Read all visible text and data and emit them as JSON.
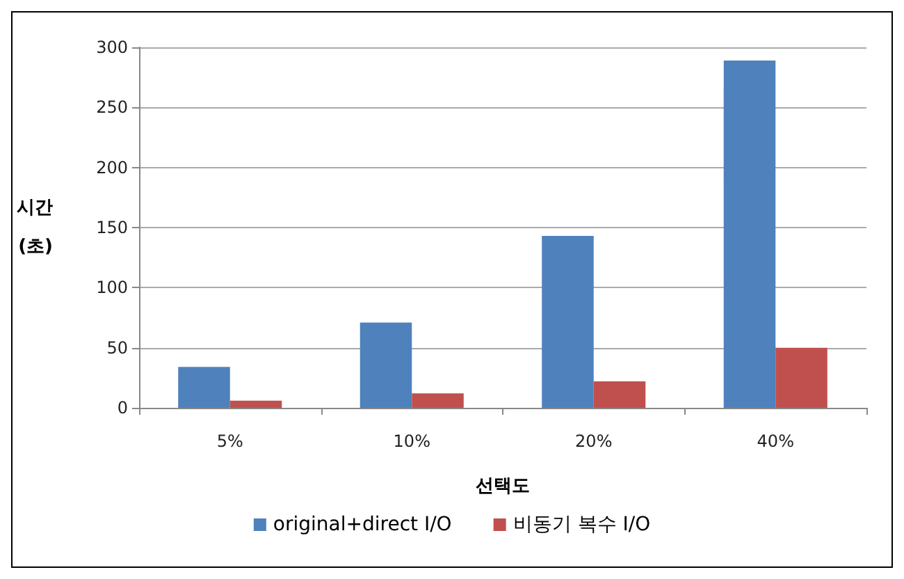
{
  "chart_data": {
    "type": "bar",
    "xlabel": "선택도",
    "ylabel": "시간\n(초)",
    "categories": [
      "5%",
      "10%",
      "20%",
      "40%"
    ],
    "series": [
      {
        "name": "original+direct I/O",
        "color": "#4f81bd",
        "values": [
          34,
          71,
          143,
          289
        ]
      },
      {
        "name": "비동기 복수 I/O",
        "color": "#c0504d",
        "values": [
          6,
          12,
          22,
          50
        ]
      }
    ],
    "ylim": [
      0,
      300
    ],
    "yticks": [
      0,
      50,
      100,
      150,
      200,
      250,
      300
    ],
    "grid": "y",
    "legend": "bottom"
  }
}
